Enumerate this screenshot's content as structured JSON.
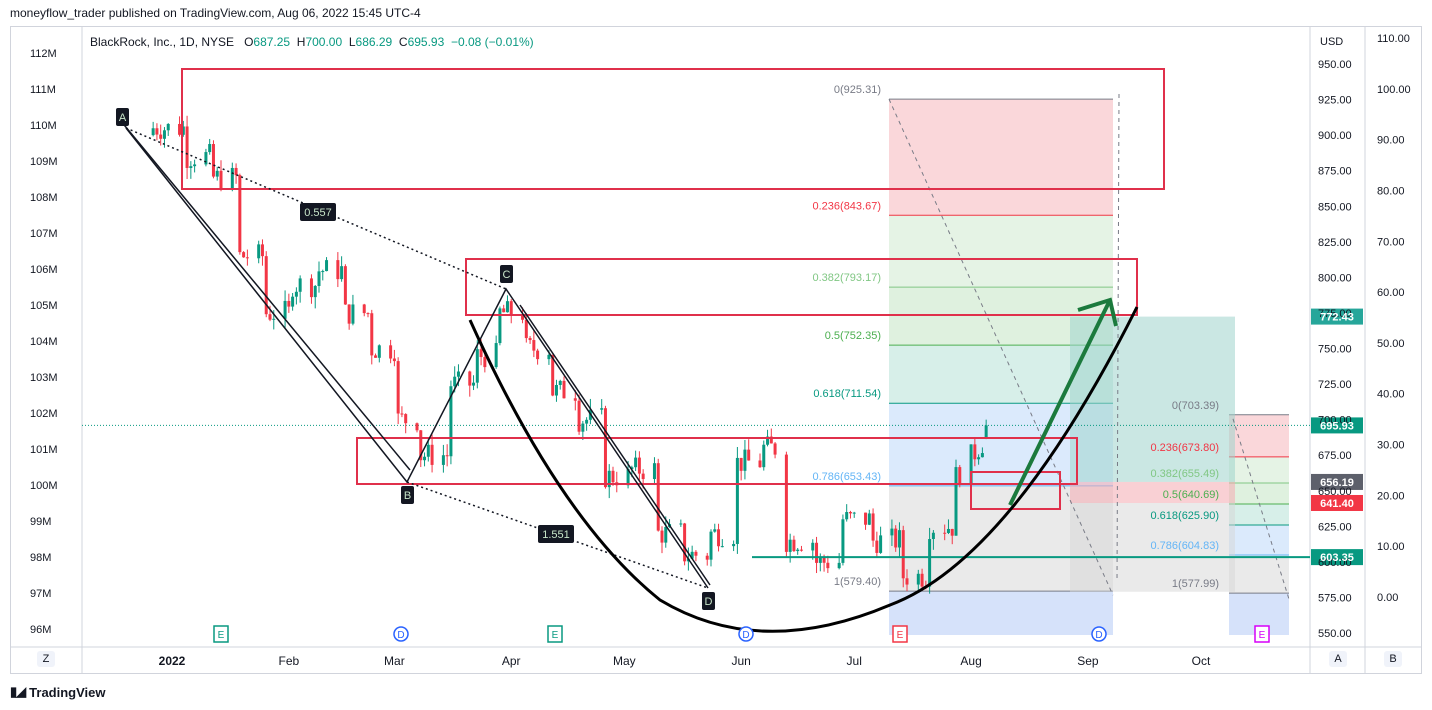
{
  "header": "moneyflow_trader published on TradingView.com, Aug 06, 2022 15:45 UTC-4",
  "legend": {
    "symbol": "BlackRock, Inc., 1D, NYSE",
    "o_label": "O",
    "o": "687.25",
    "h_label": "H",
    "h": "700.00",
    "l_label": "L",
    "l": "686.29",
    "c_label": "C",
    "c": "695.93",
    "change": "−0.08 (−0.01%)"
  },
  "footer": "TradingView",
  "corners": {
    "left": "Z",
    "right_a": "A",
    "right_b": "B"
  },
  "price_axis": {
    "currency": "USD",
    "ticks": [
      "950.00",
      "925.00",
      "900.00",
      "875.00",
      "850.00",
      "825.00",
      "800.00",
      "775.00",
      "750.00",
      "725.00",
      "700.00",
      "675.00",
      "650.00",
      "625.00",
      "600.00",
      "575.00",
      "550.00"
    ]
  },
  "money_axis": {
    "ticks": [
      "112M",
      "111M",
      "110M",
      "109M",
      "108M",
      "107M",
      "106M",
      "105M",
      "104M",
      "103M",
      "102M",
      "101M",
      "100M",
      "99M",
      "98M",
      "97M",
      "96M"
    ]
  },
  "rsi_axis": {
    "ticks": [
      "110.00",
      "100.00",
      "90.00",
      "80.00",
      "70.00",
      "60.00",
      "50.00",
      "40.00",
      "30.00",
      "20.00",
      "10.00",
      "0.00"
    ]
  },
  "time_axis": {
    "ticks": [
      "2022",
      "Feb",
      "Mar",
      "Apr",
      "May",
      "Jun",
      "Jul",
      "Aug",
      "Sep",
      "Oct"
    ]
  },
  "price_tags": [
    {
      "value": "772.43",
      "color": "#26a69a"
    },
    {
      "value": "695.93",
      "color": "#089981"
    },
    {
      "value": "656.19",
      "color": "#5d606b"
    },
    {
      "value": "641.40",
      "color": "#f23645"
    },
    {
      "value": "603.35",
      "color": "#089981"
    }
  ],
  "fib_main": [
    {
      "label": "0(925.31)",
      "color": "#787b86"
    },
    {
      "label": "0.236(843.67)",
      "color": "#f23645"
    },
    {
      "label": "0.382(793.17)",
      "color": "#81c784"
    },
    {
      "label": "0.5(752.35)",
      "color": "#4caf50"
    },
    {
      "label": "0.618(711.54)",
      "color": "#089981"
    },
    {
      "label": "0.786(653.43)",
      "color": "#64b5f6"
    },
    {
      "label": "1(579.40)",
      "color": "#787b86"
    }
  ],
  "fib_small": [
    {
      "label": "0(703.39)",
      "color": "#787b86"
    },
    {
      "label": "0.236(673.80)",
      "color": "#f23645"
    },
    {
      "label": "0.382(655.49)",
      "color": "#81c784"
    },
    {
      "label": "0.5(640.69)",
      "color": "#4caf50"
    },
    {
      "label": "0.618(625.90)",
      "color": "#089981"
    },
    {
      "label": "0.786(604.83)",
      "color": "#64b5f6"
    },
    {
      "label": "1(577.99)",
      "color": "#787b86"
    }
  ],
  "pattern_labels": [
    "A",
    "B",
    "C",
    "D"
  ],
  "ratio_labels": [
    "0.557",
    "1.551"
  ],
  "events": [
    "E",
    "D",
    "E",
    "D",
    "E",
    "D",
    "E"
  ],
  "chart_data": {
    "type": "candlestick",
    "symbol": "BLK",
    "price_range": [
      550,
      960
    ],
    "money_range_millions": [
      95.7,
      112.4
    ],
    "rsi_range": [
      0,
      110
    ],
    "ohlc_sampled": [
      {
        "d": "2021-12-27",
        "o": 900,
        "h": 915,
        "l": 890,
        "c": 905
      },
      {
        "d": "2022-01-05",
        "o": 905,
        "h": 912,
        "l": 880,
        "c": 885
      },
      {
        "d": "2022-01-12",
        "o": 885,
        "h": 895,
        "l": 860,
        "c": 870
      },
      {
        "d": "2022-01-19",
        "o": 870,
        "h": 875,
        "l": 810,
        "c": 815
      },
      {
        "d": "2022-01-26",
        "o": 815,
        "h": 830,
        "l": 760,
        "c": 775
      },
      {
        "d": "2022-02-02",
        "o": 775,
        "h": 800,
        "l": 770,
        "c": 795
      },
      {
        "d": "2022-02-09",
        "o": 795,
        "h": 820,
        "l": 790,
        "c": 805
      },
      {
        "d": "2022-02-16",
        "o": 805,
        "h": 810,
        "l": 770,
        "c": 775
      },
      {
        "d": "2022-02-23",
        "o": 775,
        "h": 780,
        "l": 735,
        "c": 750
      },
      {
        "d": "2022-03-02",
        "o": 750,
        "h": 760,
        "l": 690,
        "c": 700
      },
      {
        "d": "2022-03-08",
        "o": 700,
        "h": 705,
        "l": 665,
        "c": 675
      },
      {
        "d": "2022-03-16",
        "o": 675,
        "h": 730,
        "l": 670,
        "c": 725
      },
      {
        "d": "2022-03-23",
        "o": 725,
        "h": 755,
        "l": 720,
        "c": 745
      },
      {
        "d": "2022-03-29",
        "o": 745,
        "h": 780,
        "l": 740,
        "c": 775
      },
      {
        "d": "2022-04-05",
        "o": 775,
        "h": 778,
        "l": 745,
        "c": 750
      },
      {
        "d": "2022-04-12",
        "o": 750,
        "h": 755,
        "l": 710,
        "c": 720
      },
      {
        "d": "2022-04-19",
        "o": 720,
        "h": 725,
        "l": 690,
        "c": 700
      },
      {
        "d": "2022-04-26",
        "o": 700,
        "h": 705,
        "l": 650,
        "c": 660
      },
      {
        "d": "2022-05-03",
        "o": 660,
        "h": 675,
        "l": 640,
        "c": 665
      },
      {
        "d": "2022-05-10",
        "o": 665,
        "h": 670,
        "l": 610,
        "c": 620
      },
      {
        "d": "2022-05-17",
        "o": 620,
        "h": 640,
        "l": 595,
        "c": 605
      },
      {
        "d": "2022-05-24",
        "o": 605,
        "h": 625,
        "l": 585,
        "c": 620
      },
      {
        "d": "2022-05-31",
        "o": 620,
        "h": 675,
        "l": 615,
        "c": 670
      },
      {
        "d": "2022-06-07",
        "o": 670,
        "h": 690,
        "l": 665,
        "c": 680
      },
      {
        "d": "2022-06-13",
        "o": 680,
        "h": 682,
        "l": 610,
        "c": 615
      },
      {
        "d": "2022-06-21",
        "o": 615,
        "h": 630,
        "l": 580,
        "c": 600
      },
      {
        "d": "2022-06-28",
        "o": 600,
        "h": 640,
        "l": 595,
        "c": 630
      },
      {
        "d": "2022-07-06",
        "o": 630,
        "h": 635,
        "l": 605,
        "c": 615
      },
      {
        "d": "2022-07-14",
        "o": 615,
        "h": 620,
        "l": 579,
        "c": 590
      },
      {
        "d": "2022-07-21",
        "o": 590,
        "h": 630,
        "l": 588,
        "c": 625
      },
      {
        "d": "2022-07-28",
        "o": 625,
        "h": 665,
        "l": 620,
        "c": 660
      },
      {
        "d": "2022-08-05",
        "o": 687.25,
        "h": 700,
        "l": 686.29,
        "c": 695.93
      }
    ]
  }
}
